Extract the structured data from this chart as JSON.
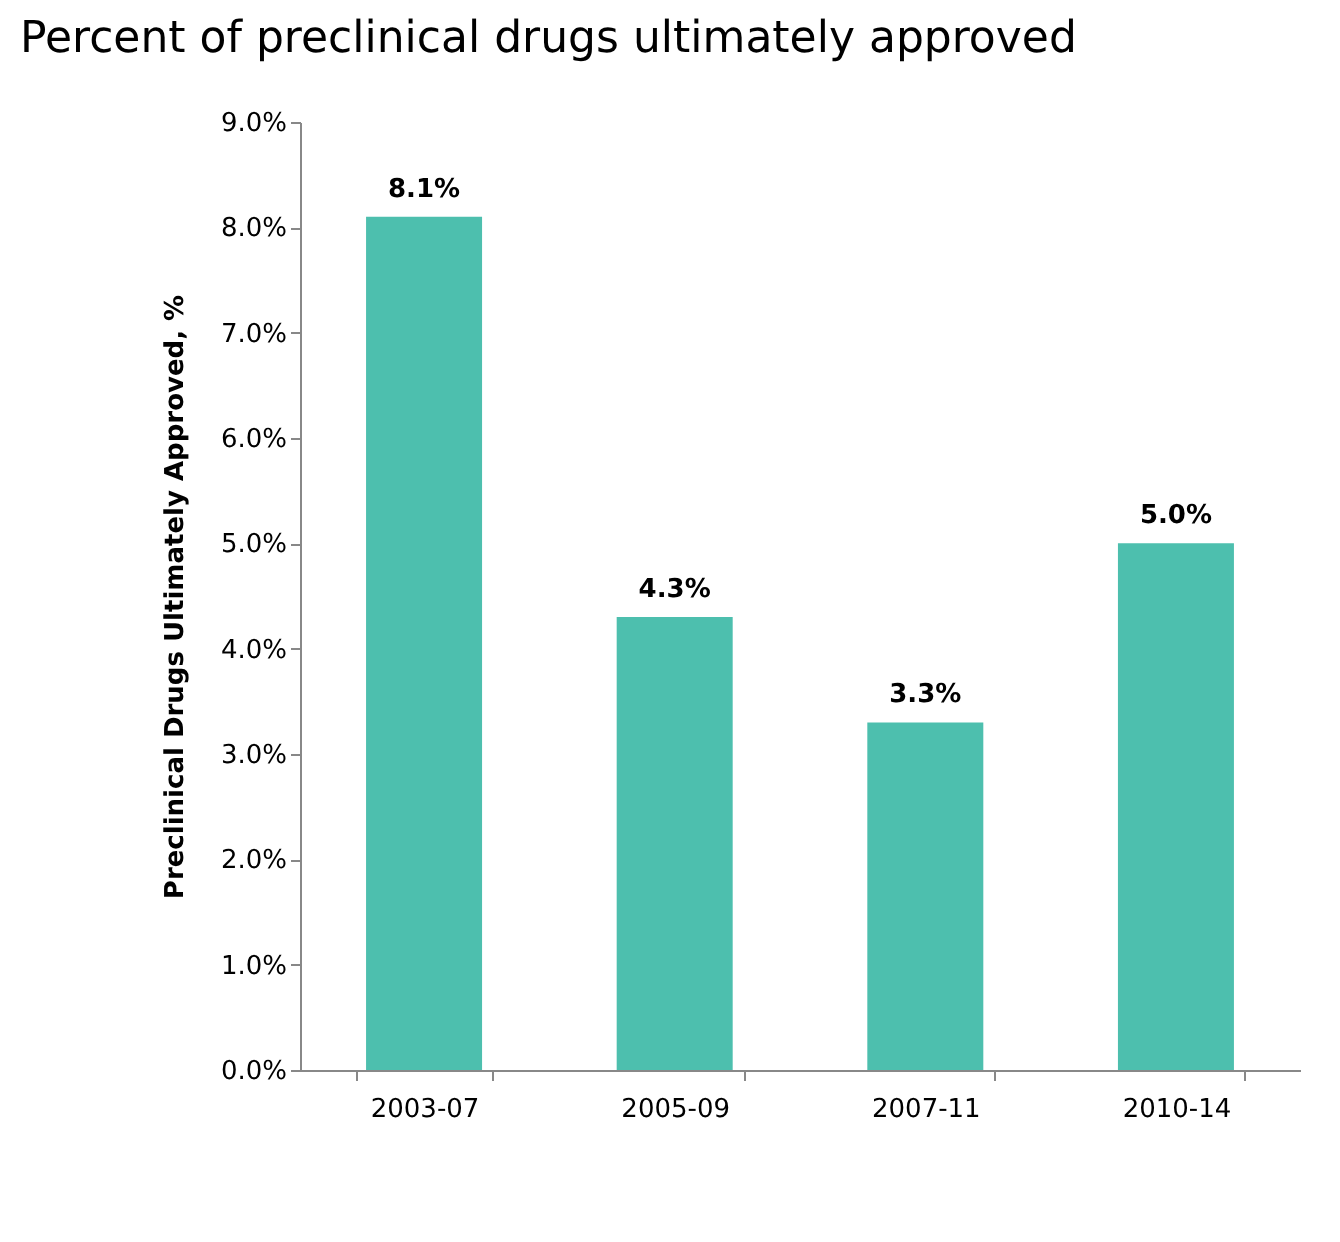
{
  "chart_data": {
    "type": "bar",
    "title": "Percent of preclinical drugs ultimately approved",
    "ylabel": "Preclinical Drugs Ultimately Approved, %",
    "categories": [
      "2003-07",
      "2005-09",
      "2007-11",
      "2010-14"
    ],
    "values": [
      8.1,
      4.3,
      3.3,
      5.0
    ],
    "value_labels": [
      "8.1%",
      "4.3%",
      "3.3%",
      "5.0%"
    ],
    "color": "#4dbfae",
    "ylim": [
      0,
      9
    ],
    "yticks": [
      {
        "value": 0,
        "label": "0.0%"
      },
      {
        "value": 1,
        "label": "1.0%"
      },
      {
        "value": 2,
        "label": "2.0%"
      },
      {
        "value": 3,
        "label": "3.0%"
      },
      {
        "value": 4,
        "label": "4.0%"
      },
      {
        "value": 5,
        "label": "5.0%"
      },
      {
        "value": 6,
        "label": "6.0%"
      },
      {
        "value": 7,
        "label": "7.0%"
      },
      {
        "value": 8,
        "label": "8.0%"
      },
      {
        "value": 9,
        "label": "9.0%"
      }
    ],
    "grid": false
  }
}
